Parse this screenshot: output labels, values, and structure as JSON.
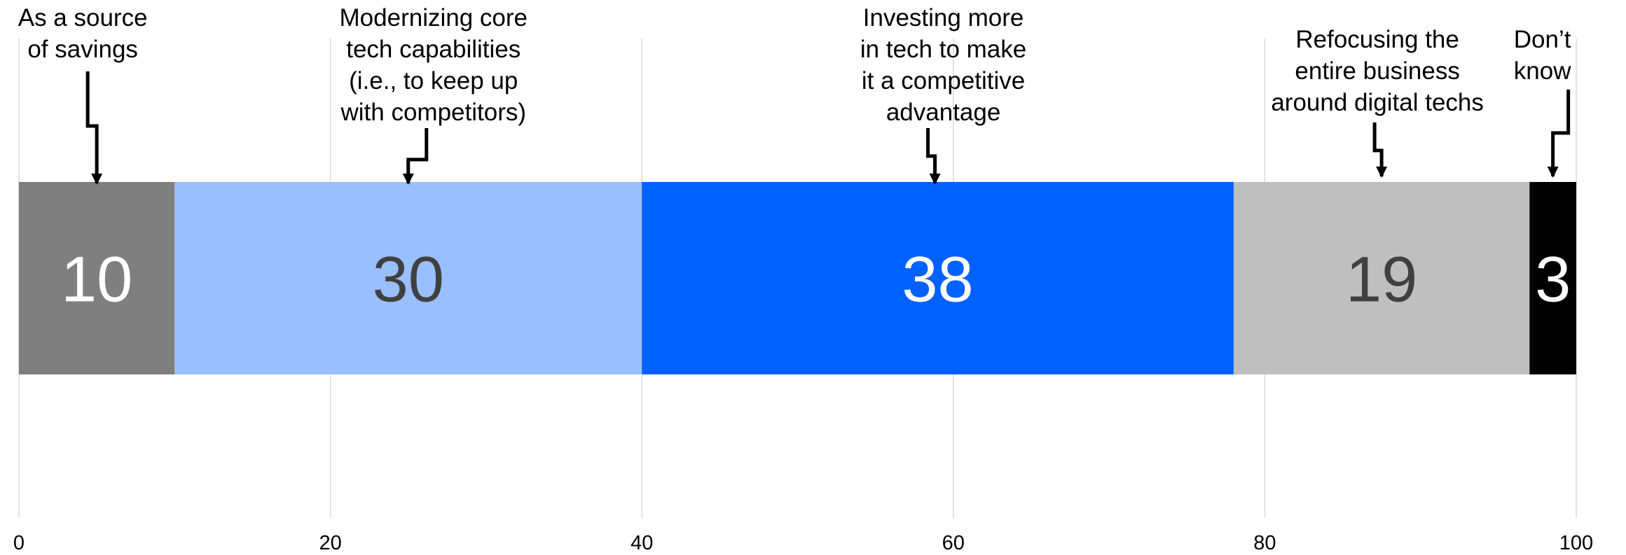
{
  "chart_data": {
    "type": "bar",
    "orientation": "horizontal-stacked",
    "title": "",
    "xlabel": "",
    "ylabel": "",
    "xlim": [
      0,
      100
    ],
    "xticks": [
      "0",
      "20",
      "40",
      "60",
      "80",
      "100"
    ],
    "grid": true,
    "segments": [
      {
        "label_lines": [
          "As a source",
          "of savings"
        ],
        "value": 10,
        "color": "#7f7f7f",
        "text_color": "#ffffff"
      },
      {
        "label_lines": [
          "Modernizing core",
          "tech capabilities",
          "(i.e., to keep up",
          "with competitors)"
        ],
        "value": 30,
        "color": "#99bffe",
        "text_color": "#404040"
      },
      {
        "label_lines": [
          "Investing more",
          "in tech to make",
          "it a competitive",
          "advantage"
        ],
        "value": 38,
        "color": "#0061ff",
        "text_color": "#ffffff"
      },
      {
        "label_lines": [
          "Refocusing the",
          "entire business",
          "around digital techs"
        ],
        "value": 19,
        "color": "#bfbfbf",
        "text_color": "#404040"
      },
      {
        "label_lines": [
          "Don’t",
          "know"
        ],
        "value": 3,
        "color": "#000000",
        "text_color": "#ffffff"
      }
    ]
  }
}
